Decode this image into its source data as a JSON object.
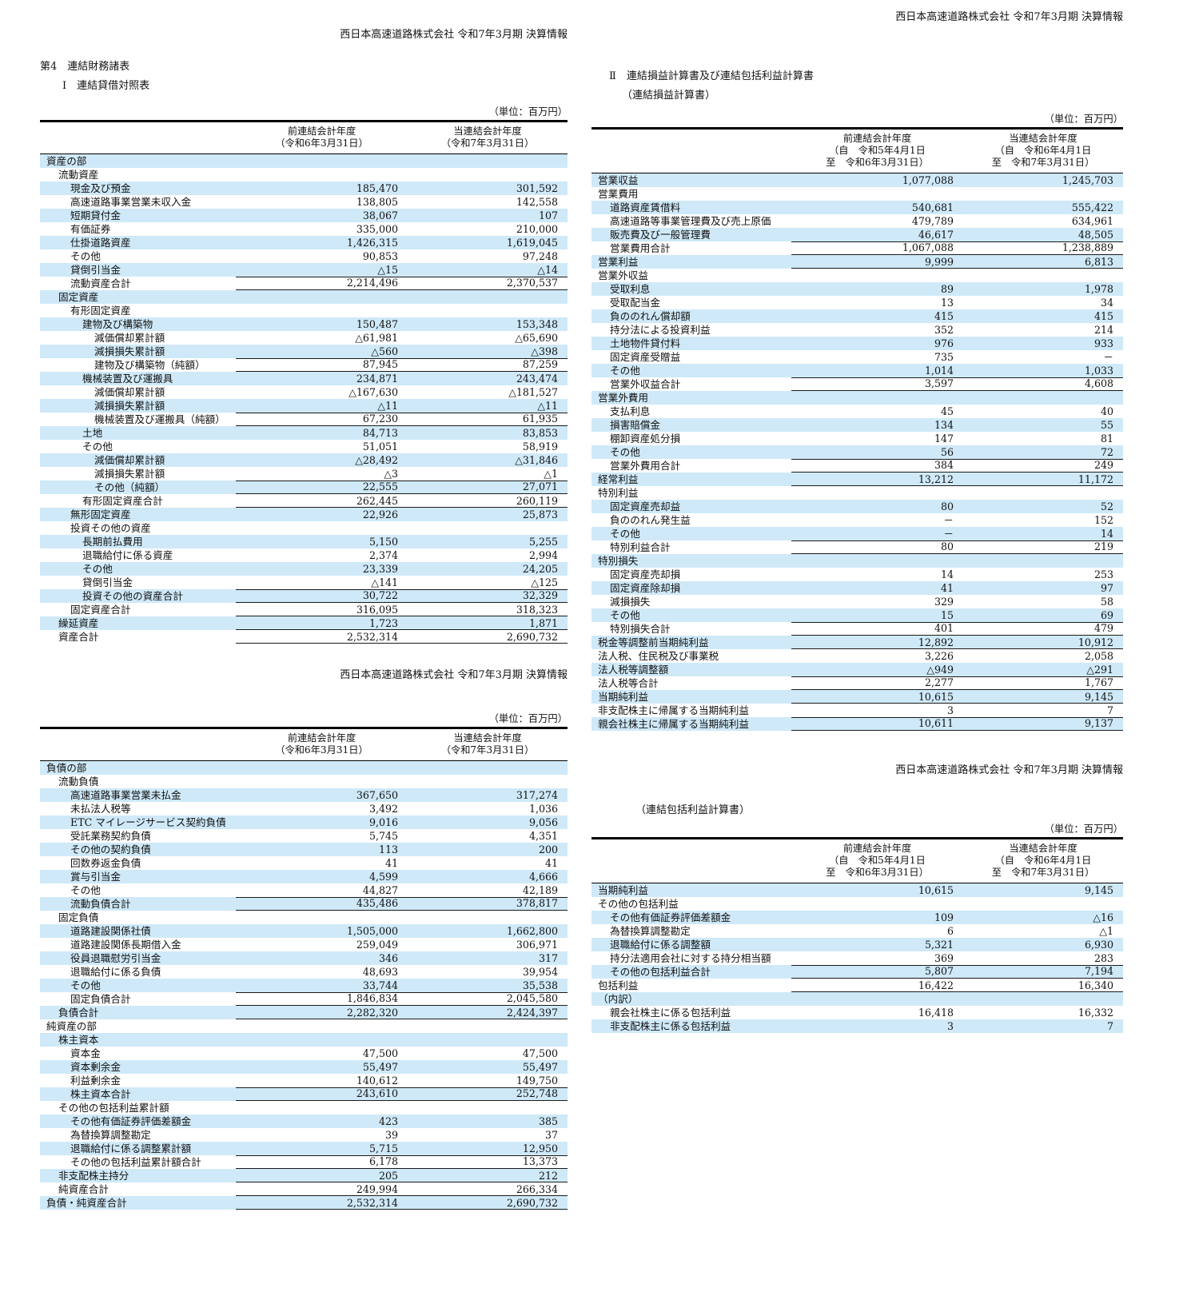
{
  "page_header": "西日本高速道路株式会社 令和7年3月期 決算情報",
  "highlight_color": "#cfe9f8",
  "unit_label": "（単位：百万円）",
  "left": {
    "header": "西日本高速道路株式会社 令和7年3月期 決算情報",
    "section_no": "第4　連結財務諸表",
    "bs_title": "Ⅰ　連結貸借対照表",
    "assets_table": {
      "col_headers": [
        [
          "前連結会計年度",
          "（令和6年3月31日）"
        ],
        [
          "当連結会計年度",
          "（令和7年3月31日）"
        ]
      ],
      "rows": [
        {
          "l": "資産の部",
          "ind": 0
        },
        {
          "l": "流動資産",
          "ind": 1
        },
        {
          "l": "現金及び預金",
          "v1": "185,470",
          "v2": "301,592",
          "ind": 2
        },
        {
          "l": "高速道路事業営業未収入金",
          "v1": "138,805",
          "v2": "142,558",
          "ind": 2
        },
        {
          "l": "短期貸付金",
          "v1": "38,067",
          "v2": "107",
          "ind": 2
        },
        {
          "l": "有価証券",
          "v1": "335,000",
          "v2": "210,000",
          "ind": 2
        },
        {
          "l": "仕掛道路資産",
          "v1": "1,426,315",
          "v2": "1,619,045",
          "ind": 2
        },
        {
          "l": "その他",
          "v1": "90,853",
          "v2": "97,248",
          "ind": 2
        },
        {
          "l": "貸倒引当金",
          "v1": "△15",
          "v2": "△14",
          "ind": 2
        },
        {
          "l": "流動資産合計",
          "v1": "2,214,496",
          "v2": "2,370,537",
          "ind": 2,
          "r": "tb"
        },
        {
          "l": "固定資産",
          "ind": 1
        },
        {
          "l": "有形固定資産",
          "ind": 2
        },
        {
          "l": "建物及び構築物",
          "v1": "150,487",
          "v2": "153,348",
          "ind": 3
        },
        {
          "l": "減価償却累計額",
          "v1": "△61,981",
          "v2": "△65,690",
          "ind": 4
        },
        {
          "l": "減損損失累計額",
          "v1": "△560",
          "v2": "△398",
          "ind": 4
        },
        {
          "l": "建物及び構築物（純額）",
          "v1": "87,945",
          "v2": "87,259",
          "ind": 4,
          "r": "tb"
        },
        {
          "l": "機械装置及び運搬具",
          "v1": "234,871",
          "v2": "243,474",
          "ind": 3
        },
        {
          "l": "減価償却累計額",
          "v1": "△167,630",
          "v2": "△181,527",
          "ind": 4
        },
        {
          "l": "減損損失累計額",
          "v1": "△11",
          "v2": "△11",
          "ind": 4
        },
        {
          "l": "機械装置及び運搬具（純額）",
          "v1": "67,230",
          "v2": "61,935",
          "ind": 4,
          "r": "tb"
        },
        {
          "l": "土地",
          "v1": "84,713",
          "v2": "83,853",
          "ind": 3
        },
        {
          "l": "その他",
          "v1": "51,051",
          "v2": "58,919",
          "ind": 3
        },
        {
          "l": "減価償却累計額",
          "v1": "△28,492",
          "v2": "△31,846",
          "ind": 4
        },
        {
          "l": "減損損失累計額",
          "v1": "△3",
          "v2": "△1",
          "ind": 4
        },
        {
          "l": "その他（純額）",
          "v1": "22,555",
          "v2": "27,071",
          "ind": 4,
          "r": "tb"
        },
        {
          "l": "有形固定資産合計",
          "v1": "262,445",
          "v2": "260,119",
          "ind": 3,
          "r": "b"
        },
        {
          "l": "無形固定資産",
          "v1": "22,926",
          "v2": "25,873",
          "ind": 2
        },
        {
          "l": "投資その他の資産",
          "ind": 2
        },
        {
          "l": "長期前払費用",
          "v1": "5,150",
          "v2": "5,255",
          "ind": 3
        },
        {
          "l": "退職給付に係る資産",
          "v1": "2,374",
          "v2": "2,994",
          "ind": 3
        },
        {
          "l": "その他",
          "v1": "23,339",
          "v2": "24,205",
          "ind": 3
        },
        {
          "l": "貸倒引当金",
          "v1": "△141",
          "v2": "△125",
          "ind": 3
        },
        {
          "l": "投資その他の資産合計",
          "v1": "30,722",
          "v2": "32,329",
          "ind": 3,
          "r": "tb"
        },
        {
          "l": "固定資産合計",
          "v1": "316,095",
          "v2": "318,323",
          "ind": 2,
          "r": "b"
        },
        {
          "l": "繰延資産",
          "v1": "1,723",
          "v2": "1,871",
          "ind": 1,
          "r": "b"
        },
        {
          "l": "資産合計",
          "v1": "2,532,314",
          "v2": "2,690,732",
          "ind": 1,
          "r": "b"
        }
      ]
    },
    "mid_header": "西日本高速道路株式会社 令和7年3月期 決算情報",
    "liabilities_table": {
      "col_headers": [
        [
          "前連結会計年度",
          "（令和6年3月31日）"
        ],
        [
          "当連結会計年度",
          "（令和7年3月31日）"
        ]
      ],
      "rows": [
        {
          "l": "負債の部",
          "ind": 0
        },
        {
          "l": "流動負債",
          "ind": 1
        },
        {
          "l": "高速道路事業営業未払金",
          "v1": "367,650",
          "v2": "317,274",
          "ind": 2
        },
        {
          "l": "未払法人税等",
          "v1": "3,492",
          "v2": "1,036",
          "ind": 2
        },
        {
          "l": "ETC マイレージサービス契約負債",
          "v1": "9,016",
          "v2": "9,056",
          "ind": 2
        },
        {
          "l": "受託業務契約負債",
          "v1": "5,745",
          "v2": "4,351",
          "ind": 2
        },
        {
          "l": "その他の契約負債",
          "v1": "113",
          "v2": "200",
          "ind": 2
        },
        {
          "l": "回数券返金負債",
          "v1": "41",
          "v2": "41",
          "ind": 2
        },
        {
          "l": "賞与引当金",
          "v1": "4,599",
          "v2": "4,666",
          "ind": 2
        },
        {
          "l": "その他",
          "v1": "44,827",
          "v2": "42,189",
          "ind": 2
        },
        {
          "l": "流動負債合計",
          "v1": "435,486",
          "v2": "378,817",
          "ind": 2,
          "r": "tb"
        },
        {
          "l": "固定負債",
          "ind": 1
        },
        {
          "l": "道路建設関係社債",
          "v1": "1,505,000",
          "v2": "1,662,800",
          "ind": 2
        },
        {
          "l": "道路建設関係長期借入金",
          "v1": "259,049",
          "v2": "306,971",
          "ind": 2
        },
        {
          "l": "役員退職慰労引当金",
          "v1": "346",
          "v2": "317",
          "ind": 2
        },
        {
          "l": "退職給付に係る負債",
          "v1": "48,693",
          "v2": "39,954",
          "ind": 2
        },
        {
          "l": "その他",
          "v1": "33,744",
          "v2": "35,538",
          "ind": 2
        },
        {
          "l": "固定負債合計",
          "v1": "1,846,834",
          "v2": "2,045,580",
          "ind": 2,
          "r": "tb"
        },
        {
          "l": "負債合計",
          "v1": "2,282,320",
          "v2": "2,424,397",
          "ind": 1,
          "r": "b"
        },
        {
          "l": "純資産の部",
          "ind": 0
        },
        {
          "l": "株主資本",
          "ind": 1
        },
        {
          "l": "資本金",
          "v1": "47,500",
          "v2": "47,500",
          "ind": 2
        },
        {
          "l": "資本剰余金",
          "v1": "55,497",
          "v2": "55,497",
          "ind": 2
        },
        {
          "l": "利益剰余金",
          "v1": "140,612",
          "v2": "149,750",
          "ind": 2
        },
        {
          "l": "株主資本合計",
          "v1": "243,610",
          "v2": "252,748",
          "ind": 2,
          "r": "tb"
        },
        {
          "l": "その他の包括利益累計額",
          "ind": 1
        },
        {
          "l": "その他有価証券評価差額金",
          "v1": "423",
          "v2": "385",
          "ind": 2
        },
        {
          "l": "為替換算調整勘定",
          "v1": "39",
          "v2": "37",
          "ind": 2
        },
        {
          "l": "退職給付に係る調整累計額",
          "v1": "5,715",
          "v2": "12,950",
          "ind": 2
        },
        {
          "l": "その他の包括利益累計額合計",
          "v1": "6,178",
          "v2": "13,373",
          "ind": 2,
          "r": "tb"
        },
        {
          "l": "非支配株主持分",
          "v1": "205",
          "v2": "212",
          "ind": 1,
          "r": "b"
        },
        {
          "l": "純資産合計",
          "v1": "249,994",
          "v2": "266,334",
          "ind": 1,
          "r": "b"
        },
        {
          "l": "負債・純資産合計",
          "v1": "2,532,314",
          "v2": "2,690,732",
          "ind": 0,
          "r": "b"
        }
      ]
    }
  },
  "right": {
    "pl_section_title": "Ⅱ　連結損益計算書及び連結包括利益計算書",
    "pl_subtitle": "（連結損益計算書）",
    "income_table": {
      "col_headers": [
        [
          "前連結会計年度",
          "（自　令和5年4月1日",
          "至　令和6年3月31日）"
        ],
        [
          "当連結会計年度",
          "（自　令和6年4月1日",
          "至　令和7年3月31日）"
        ]
      ],
      "rows": [
        {
          "l": "営業収益",
          "v1": "1,077,088",
          "v2": "1,245,703",
          "ind": 0
        },
        {
          "l": "営業費用",
          "ind": 0
        },
        {
          "l": "道路資産賃借料",
          "v1": "540,681",
          "v2": "555,422",
          "ind": 1
        },
        {
          "l": "高速道路等事業管理費及び売上原価",
          "v1": "479,789",
          "v2": "634,961",
          "ind": 1
        },
        {
          "l": "販売費及び一般管理費",
          "v1": "46,617",
          "v2": "48,505",
          "ind": 1
        },
        {
          "l": "営業費用合計",
          "v1": "1,067,088",
          "v2": "1,238,889",
          "ind": 1,
          "r": "tb"
        },
        {
          "l": "営業利益",
          "v1": "9,999",
          "v2": "6,813",
          "ind": 0,
          "r": "b"
        },
        {
          "l": "営業外収益",
          "ind": 0
        },
        {
          "l": "受取利息",
          "v1": "89",
          "v2": "1,978",
          "ind": 1
        },
        {
          "l": "受取配当金",
          "v1": "13",
          "v2": "34",
          "ind": 1
        },
        {
          "l": "負ののれん償却額",
          "v1": "415",
          "v2": "415",
          "ind": 1
        },
        {
          "l": "持分法による投資利益",
          "v1": "352",
          "v2": "214",
          "ind": 1
        },
        {
          "l": "土地物件貸付料",
          "v1": "976",
          "v2": "933",
          "ind": 1
        },
        {
          "l": "固定資産受贈益",
          "v1": "735",
          "v2": "－",
          "ind": 1
        },
        {
          "l": "その他",
          "v1": "1,014",
          "v2": "1,033",
          "ind": 1
        },
        {
          "l": "営業外収益合計",
          "v1": "3,597",
          "v2": "4,608",
          "ind": 1,
          "r": "tb"
        },
        {
          "l": "営業外費用",
          "ind": 0
        },
        {
          "l": "支払利息",
          "v1": "45",
          "v2": "40",
          "ind": 1
        },
        {
          "l": "損害賠償金",
          "v1": "134",
          "v2": "55",
          "ind": 1
        },
        {
          "l": "棚卸資産処分損",
          "v1": "147",
          "v2": "81",
          "ind": 1
        },
        {
          "l": "その他",
          "v1": "56",
          "v2": "72",
          "ind": 1
        },
        {
          "l": "営業外費用合計",
          "v1": "384",
          "v2": "249",
          "ind": 1,
          "r": "tb"
        },
        {
          "l": "経常利益",
          "v1": "13,212",
          "v2": "11,172",
          "ind": 0,
          "r": "b"
        },
        {
          "l": "特別利益",
          "ind": 0
        },
        {
          "l": "固定資産売却益",
          "v1": "80",
          "v2": "52",
          "ind": 1
        },
        {
          "l": "負ののれん発生益",
          "v1": "－",
          "v2": "152",
          "ind": 1
        },
        {
          "l": "その他",
          "v1": "－",
          "v2": "14",
          "ind": 1
        },
        {
          "l": "特別利益合計",
          "v1": "80",
          "v2": "219",
          "ind": 1,
          "r": "tb"
        },
        {
          "l": "特別損失",
          "ind": 0
        },
        {
          "l": "固定資産売却損",
          "v1": "14",
          "v2": "253",
          "ind": 1
        },
        {
          "l": "固定資産除却損",
          "v1": "41",
          "v2": "97",
          "ind": 1
        },
        {
          "l": "減損損失",
          "v1": "329",
          "v2": "58",
          "ind": 1
        },
        {
          "l": "その他",
          "v1": "15",
          "v2": "69",
          "ind": 1
        },
        {
          "l": "特別損失合計",
          "v1": "401",
          "v2": "479",
          "ind": 1,
          "r": "tb"
        },
        {
          "l": "税金等調整前当期純利益",
          "v1": "12,892",
          "v2": "10,912",
          "ind": 0,
          "r": "b"
        },
        {
          "l": "法人税、住民税及び事業税",
          "v1": "3,226",
          "v2": "2,058",
          "ind": 0
        },
        {
          "l": "法人税等調整額",
          "v1": "△949",
          "v2": "△291",
          "ind": 0
        },
        {
          "l": "法人税等合計",
          "v1": "2,277",
          "v2": "1,767",
          "ind": 0,
          "r": "tb"
        },
        {
          "l": "当期純利益",
          "v1": "10,615",
          "v2": "9,145",
          "ind": 0,
          "r": "b"
        },
        {
          "l": "非支配株主に帰属する当期純利益",
          "v1": "3",
          "v2": "7",
          "ind": 0
        },
        {
          "l": "親会社株主に帰属する当期純利益",
          "v1": "10,611",
          "v2": "9,137",
          "ind": 0,
          "r": "tb"
        }
      ]
    },
    "mid_header": "西日本高速道路株式会社 令和7年3月期 決算情報",
    "ci_subtitle": "（連結包括利益計算書）",
    "comprehensive_table": {
      "col_headers": [
        [
          "前連結会計年度",
          "（自　令和5年4月1日",
          "至　令和6年3月31日）"
        ],
        [
          "当連結会計年度",
          "（自　令和6年4月1日",
          "至　令和7年3月31日）"
        ]
      ],
      "rows": [
        {
          "l": "当期純利益",
          "v1": "10,615",
          "v2": "9,145",
          "ind": 0
        },
        {
          "l": "その他の包括利益",
          "ind": 0
        },
        {
          "l": "その他有価証券評価差額金",
          "v1": "109",
          "v2": "△16",
          "ind": 1
        },
        {
          "l": "為替換算調整勘定",
          "v1": "6",
          "v2": "△1",
          "ind": 1
        },
        {
          "l": "退職給付に係る調整額",
          "v1": "5,321",
          "v2": "6,930",
          "ind": 1
        },
        {
          "l": "持分法適用会社に対する持分相当額",
          "v1": "369",
          "v2": "283",
          "ind": 1
        },
        {
          "l": "その他の包括利益合計",
          "v1": "5,807",
          "v2": "7,194",
          "ind": 1,
          "r": "tb"
        },
        {
          "l": "包括利益",
          "v1": "16,422",
          "v2": "16,340",
          "ind": 0,
          "r": "b"
        },
        {
          "l": "（内訳）",
          "ind": 0
        },
        {
          "l": "親会社株主に係る包括利益",
          "v1": "16,418",
          "v2": "16,332",
          "ind": 1
        },
        {
          "l": "非支配株主に係る包括利益",
          "v1": "3",
          "v2": "7",
          "ind": 1
        }
      ]
    }
  }
}
